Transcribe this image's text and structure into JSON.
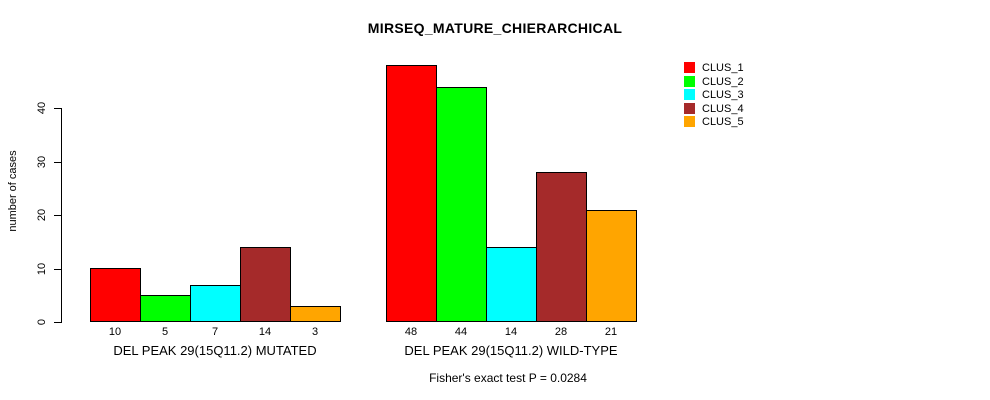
{
  "page": {
    "background": "#ffffff"
  },
  "chart_data": {
    "type": "bar",
    "title": "MIRSEQ_MATURE_CHIERARCHICAL",
    "ylabel": "number of cases",
    "xlabel": "",
    "ylim": [
      0,
      40
    ],
    "yticks": [
      0,
      10,
      20,
      30,
      40
    ],
    "grid": false,
    "legend_position": "right",
    "bar_border_color": "#000000",
    "legend": [
      {
        "name": "CLUS_1",
        "color": "#ff0000"
      },
      {
        "name": "CLUS_2",
        "color": "#00ff00"
      },
      {
        "name": "CLUS_3",
        "color": "#00ffff"
      },
      {
        "name": "CLUS_4",
        "color": "#a52a2a"
      },
      {
        "name": "CLUS_5",
        "color": "#ffa500"
      }
    ],
    "categories": [
      "DEL PEAK 29(15Q11.2) MUTATED",
      "DEL PEAK 29(15Q11.2) WILD-TYPE"
    ],
    "series": [
      {
        "name": "CLUS_1",
        "values": [
          10,
          48
        ]
      },
      {
        "name": "CLUS_2",
        "values": [
          5,
          44
        ]
      },
      {
        "name": "CLUS_3",
        "values": [
          7,
          14
        ]
      },
      {
        "name": "CLUS_4",
        "values": [
          14,
          28
        ]
      },
      {
        "name": "CLUS_5",
        "values": [
          3,
          21
        ]
      }
    ],
    "bar_value_labels": [
      [
        "10",
        "5",
        "7",
        "14",
        "3"
      ],
      [
        "48",
        "44",
        "14",
        "28",
        "21"
      ]
    ],
    "annotation": "Fisher's exact test P = 0.0284"
  }
}
